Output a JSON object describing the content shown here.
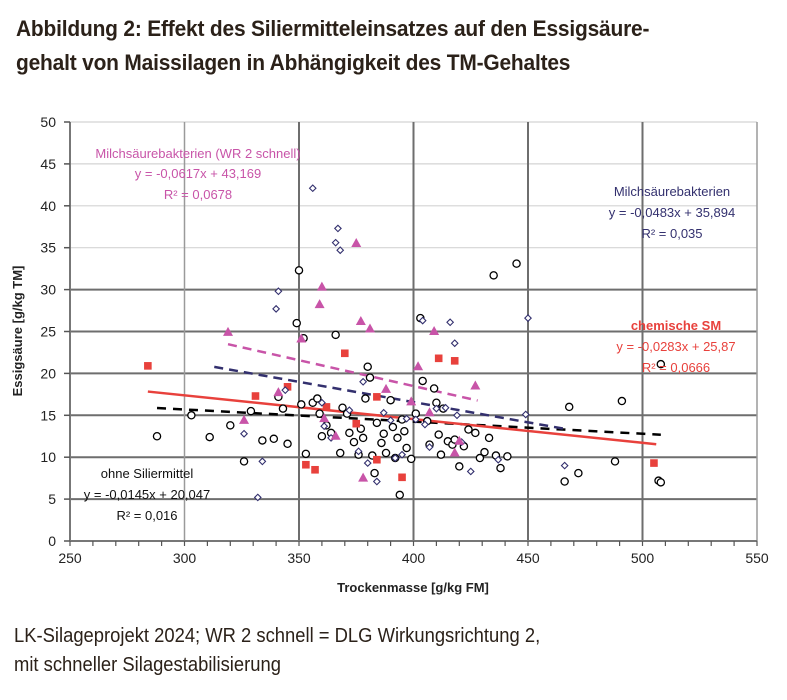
{
  "title": {
    "line1": "Abbildung 2: Effekt des Siliermitteleinsatzes auf den Essigsäure-",
    "line2": "gehalt von Maissilagen in Abhängigkeit des TM-Gehaltes"
  },
  "caption": {
    "line1": "LK-Silageprojekt 2024; WR 2 schnell = DLG Wirkungsrichtung 2,",
    "line2": "mit schneller Silagestabilisierung"
  },
  "chart_data": {
    "type": "scatter",
    "title": "Abbildung 2: Effekt des Siliermitteleinsatzes auf den Essigsäuregehalt von Maissilagen in Abhängigkeit des TM-Gehaltes",
    "xlabel": "Trockenmasse [g/kg FM]",
    "ylabel": "Essigsäure [g/kg TM]",
    "xlim": [
      250,
      550
    ],
    "ylim": [
      0,
      50
    ],
    "xticks": [
      250,
      300,
      350,
      400,
      450,
      500,
      550
    ],
    "yticks": [
      0,
      5,
      10,
      15,
      20,
      25,
      30,
      35,
      40,
      45,
      50
    ],
    "grid": true,
    "series": [
      {
        "name": "ohne Siliermittel",
        "marker": "circle-open",
        "color": "#000000",
        "trend": {
          "slope": -0.0145,
          "intercept": 20.047,
          "x_range": [
            288,
            508
          ],
          "style": "dashed"
        },
        "annotation": {
          "label": "ohne Siliermittel",
          "equation": "y = -0,0145x + 20,047",
          "r2": "R² = 0,016"
        },
        "points": [
          [
            288,
            12.5
          ],
          [
            303,
            15.0
          ],
          [
            311,
            12.4
          ],
          [
            320,
            13.8
          ],
          [
            326,
            9.5
          ],
          [
            329,
            15.5
          ],
          [
            334,
            12.0
          ],
          [
            339,
            12.2
          ],
          [
            341,
            17.2
          ],
          [
            343,
            15.8
          ],
          [
            345,
            11.6
          ],
          [
            349,
            26.0
          ],
          [
            350,
            32.3
          ],
          [
            351,
            16.3
          ],
          [
            352,
            24.2
          ],
          [
            353,
            10.4
          ],
          [
            356,
            16.5
          ],
          [
            358,
            17.0
          ],
          [
            359,
            15.2
          ],
          [
            360,
            12.5
          ],
          [
            362,
            13.8
          ],
          [
            364,
            12.9
          ],
          [
            366,
            24.6
          ],
          [
            368,
            10.5
          ],
          [
            369,
            15.9
          ],
          [
            371,
            15.2
          ],
          [
            372,
            12.9
          ],
          [
            374,
            11.8
          ],
          [
            376,
            10.3
          ],
          [
            377,
            13.4
          ],
          [
            378,
            12.3
          ],
          [
            379,
            17.0
          ],
          [
            380,
            20.8
          ],
          [
            381,
            19.5
          ],
          [
            382,
            10.2
          ],
          [
            383,
            8.1
          ],
          [
            384,
            14.1
          ],
          [
            386,
            11.7
          ],
          [
            387,
            12.8
          ],
          [
            388,
            10.5
          ],
          [
            390,
            16.8
          ],
          [
            391,
            13.6
          ],
          [
            392,
            9.9
          ],
          [
            393,
            12.3
          ],
          [
            394,
            5.5
          ],
          [
            395,
            14.5
          ],
          [
            396,
            13.1
          ],
          [
            397,
            11.1
          ],
          [
            399,
            9.8
          ],
          [
            401,
            15.2
          ],
          [
            403,
            26.6
          ],
          [
            404,
            19.1
          ],
          [
            406,
            14.3
          ],
          [
            407,
            11.5
          ],
          [
            409,
            18.2
          ],
          [
            410,
            16.5
          ],
          [
            411,
            12.7
          ],
          [
            412,
            10.3
          ],
          [
            413,
            15.8
          ],
          [
            415,
            11.9
          ],
          [
            417,
            11.5
          ],
          [
            418,
            12.1
          ],
          [
            420,
            8.9
          ],
          [
            422,
            11.3
          ],
          [
            424,
            13.3
          ],
          [
            427,
            12.9
          ],
          [
            429,
            9.9
          ],
          [
            431,
            10.6
          ],
          [
            433,
            12.3
          ],
          [
            435,
            31.7
          ],
          [
            436,
            10.2
          ],
          [
            438,
            8.7
          ],
          [
            441,
            10.1
          ],
          [
            445,
            33.1
          ],
          [
            466,
            7.1
          ],
          [
            472,
            8.1
          ],
          [
            468,
            16.0
          ],
          [
            488,
            9.5
          ],
          [
            491,
            16.7
          ],
          [
            507,
            7.2
          ],
          [
            508,
            7.0
          ],
          [
            508,
            21.1
          ]
        ]
      },
      {
        "name": "chemische SM",
        "marker": "square",
        "color": "#e8413c",
        "trend": {
          "slope": -0.0283,
          "intercept": 25.87,
          "x_range": [
            284,
            506
          ],
          "style": "solid"
        },
        "annotation": {
          "label": "chemische SM",
          "equation": "y = -0,0283x + 25,87",
          "r2": "R² = 0,0666"
        },
        "points": [
          [
            284,
            20.9
          ],
          [
            331,
            17.3
          ],
          [
            345,
            18.4
          ],
          [
            353,
            9.1
          ],
          [
            357,
            8.5
          ],
          [
            362,
            16.0
          ],
          [
            370,
            22.4
          ],
          [
            375,
            14.0
          ],
          [
            384,
            9.7
          ],
          [
            384,
            17.2
          ],
          [
            395,
            7.6
          ],
          [
            411,
            21.8
          ],
          [
            418,
            21.5
          ],
          [
            505,
            9.3
          ]
        ]
      },
      {
        "name": "Milchsäurebakterien",
        "marker": "diamond-open",
        "color": "#33306e",
        "trend": {
          "slope": -0.0483,
          "intercept": 35.894,
          "x_range": [
            313,
            466
          ],
          "style": "dashed"
        },
        "annotation": {
          "label": "Milchsäurebakterien",
          "equation": "y = -0,0483x + 35,894",
          "r2": "R² = 0,035"
        },
        "points": [
          [
            326,
            12.8
          ],
          [
            332,
            5.2
          ],
          [
            334,
            9.5
          ],
          [
            340,
            27.7
          ],
          [
            341,
            29.8
          ],
          [
            344,
            18.0
          ],
          [
            356,
            42.1
          ],
          [
            360,
            16.5
          ],
          [
            361,
            13.7
          ],
          [
            364,
            12.3
          ],
          [
            366,
            35.6
          ],
          [
            367,
            37.3
          ],
          [
            368,
            34.7
          ],
          [
            372,
            15.6
          ],
          [
            376,
            10.7
          ],
          [
            378,
            19.0
          ],
          [
            380,
            9.3
          ],
          [
            384,
            7.1
          ],
          [
            387,
            15.3
          ],
          [
            390,
            14.4
          ],
          [
            392,
            9.9
          ],
          [
            395,
            10.3
          ],
          [
            397,
            14.6
          ],
          [
            401,
            14.5
          ],
          [
            404,
            26.3
          ],
          [
            405,
            13.9
          ],
          [
            407,
            11.2
          ],
          [
            410,
            15.8
          ],
          [
            414,
            15.9
          ],
          [
            416,
            26.1
          ],
          [
            418,
            23.6
          ],
          [
            419,
            15.0
          ],
          [
            421,
            11.8
          ],
          [
            425,
            8.3
          ],
          [
            437,
            9.7
          ],
          [
            450,
            26.6
          ],
          [
            449,
            15.1
          ],
          [
            466,
            9.0
          ]
        ]
      },
      {
        "name": "Milchsäurebakterien (WR 2 schnell)",
        "marker": "triangle",
        "color": "#c854a8",
        "trend": {
          "slope": -0.0617,
          "intercept": 43.169,
          "x_range": [
            319,
            428
          ],
          "style": "dashed"
        },
        "annotation": {
          "label": "Milchsäurebakterien (WR 2 schnell)",
          "equation": "y = -0,0617x + 43,169",
          "r2": "R² = 0,0678"
        },
        "points": [
          [
            319,
            24.9
          ],
          [
            326,
            14.4
          ],
          [
            341,
            17.7
          ],
          [
            351,
            24.1
          ],
          [
            359,
            28.2
          ],
          [
            360,
            30.3
          ],
          [
            361,
            14.6
          ],
          [
            366,
            12.5
          ],
          [
            375,
            35.5
          ],
          [
            377,
            26.2
          ],
          [
            378,
            7.5
          ],
          [
            381,
            25.3
          ],
          [
            388,
            18.1
          ],
          [
            399,
            16.6
          ],
          [
            402,
            20.8
          ],
          [
            407,
            15.3
          ],
          [
            409,
            25.0
          ],
          [
            418,
            10.5
          ],
          [
            420,
            11.9
          ],
          [
            427,
            18.5
          ]
        ]
      }
    ]
  }
}
